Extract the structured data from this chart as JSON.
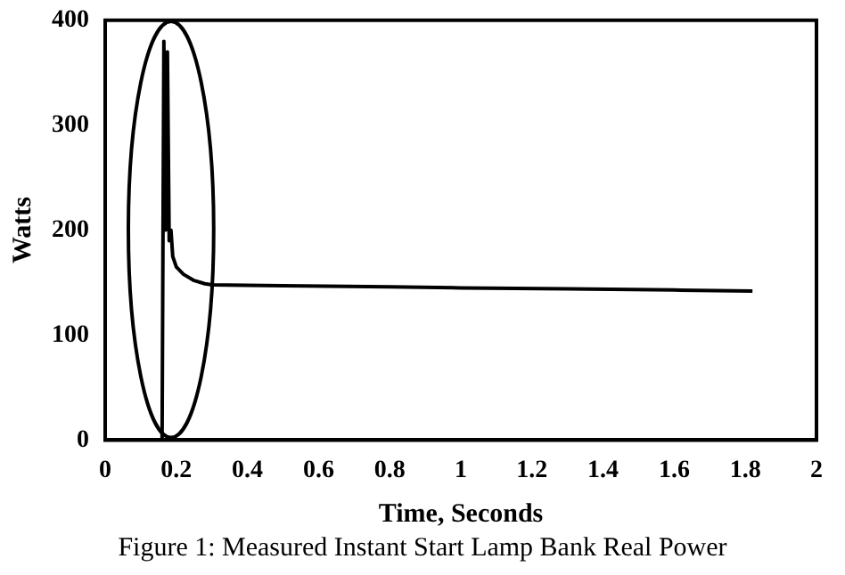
{
  "chart_data": {
    "type": "line",
    "xlabel": "Time, Seconds",
    "ylabel": "Watts",
    "annotations": [
      "Figure 1: Measured Instant Start Lamp Bank Real Power"
    ],
    "xlim": [
      0,
      2
    ],
    "xticks": [
      0,
      0.2,
      0.4,
      0.6,
      0.8,
      1,
      1.2,
      1.4,
      1.6,
      1.8,
      2
    ],
    "ylim": [
      0,
      400
    ],
    "yticks": [
      0,
      100,
      200,
      300,
      400
    ],
    "grid": false,
    "legend": false,
    "marker": "none",
    "line_style": "solid",
    "series": [
      {
        "color": "#000000",
        "x": [
          0.16,
          0.165,
          0.17,
          0.175,
          0.18,
          0.185,
          0.19,
          0.2,
          0.22,
          0.25,
          0.28,
          0.3,
          0.5,
          0.8,
          1.0,
          1.3,
          1.6,
          1.82
        ],
        "values": [
          0,
          380,
          200,
          370,
          190,
          200,
          175,
          165,
          158,
          152,
          149,
          148,
          147,
          146,
          145,
          144,
          143,
          142
        ]
      }
    ]
  }
}
